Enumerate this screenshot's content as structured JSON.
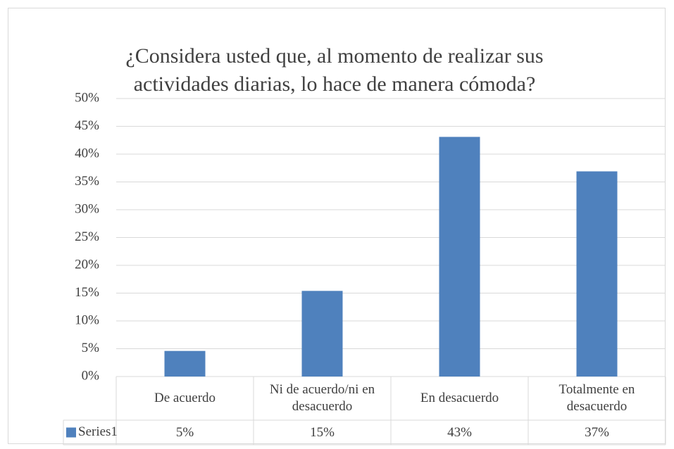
{
  "chart_data": {
    "type": "bar",
    "title": "¿Considera usted que, al momento de realizar sus actividades diarias, lo hace de manera cómoda?",
    "categories": [
      "De acuerdo",
      "Ni de acuerdo/ni en desacuerdo",
      "En desacuerdo",
      "Totalmente en desacuerdo"
    ],
    "series": [
      {
        "name": "Series1",
        "color": "#4f81bd",
        "values": [
          4.6,
          15.4,
          43.1,
          36.9
        ],
        "value_labels": [
          "5%",
          "15%",
          "43%",
          "37%"
        ]
      }
    ],
    "ylim": [
      0,
      50
    ],
    "yticks": [
      {
        "value": 0,
        "label": "0%"
      },
      {
        "value": 5,
        "label": "5%"
      },
      {
        "value": 10,
        "label": "10%"
      },
      {
        "value": 15,
        "label": "15%"
      },
      {
        "value": 20,
        "label": "20%"
      },
      {
        "value": 25,
        "label": "25%"
      },
      {
        "value": 30,
        "label": "30%"
      },
      {
        "value": 35,
        "label": "35%"
      },
      {
        "value": 40,
        "label": "40%"
      },
      {
        "value": 45,
        "label": "45%"
      },
      {
        "value": 50,
        "label": "50%"
      }
    ],
    "grid": true
  }
}
